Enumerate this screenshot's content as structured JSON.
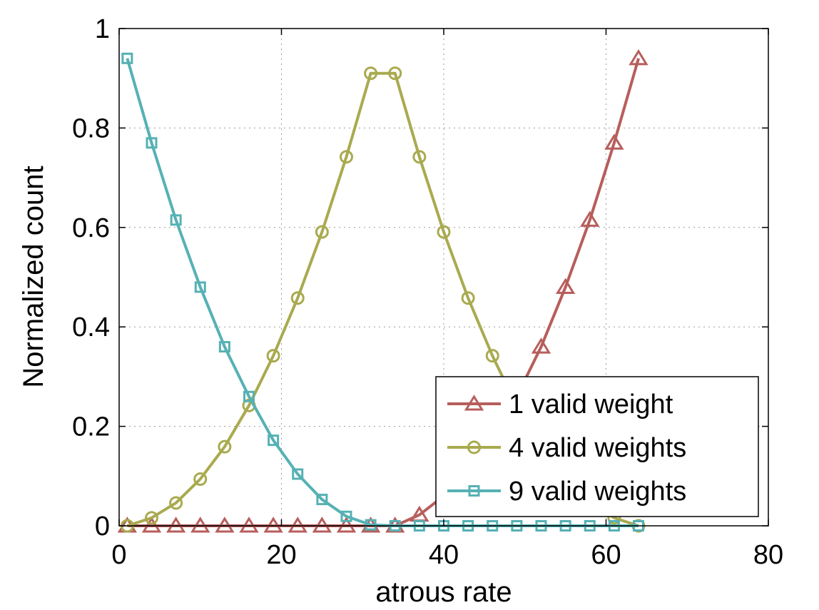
{
  "chart_data": {
    "type": "line",
    "xlabel": "atrous rate",
    "ylabel": "Normalized count",
    "xlim": [
      0,
      80
    ],
    "ylim": [
      0,
      1
    ],
    "xticks": [
      "0",
      "20",
      "40",
      "60",
      "80"
    ],
    "yticks": [
      "0",
      "0.2",
      "0.4",
      "0.6",
      "0.8",
      "1"
    ],
    "grid": true,
    "legend_position": "bottom-right",
    "x": [
      1,
      4,
      7,
      10,
      13,
      16,
      19,
      22,
      25,
      28,
      31,
      34,
      37,
      40,
      43,
      46,
      49,
      52,
      55,
      58,
      61,
      64
    ],
    "series": [
      {
        "name": "1 valid weight",
        "color": "#b75e5c",
        "marker": "triangle",
        "values": [
          0,
          0,
          0,
          0,
          0,
          0,
          0,
          0,
          0,
          0,
          0,
          0,
          0.022,
          0.06,
          0.1,
          0.17,
          0.26,
          0.36,
          0.48,
          0.615,
          0.77,
          0.94
        ]
      },
      {
        "name": "4 valid weights",
        "color": "#a9aa4f",
        "marker": "circle",
        "values": [
          0,
          0.016,
          0.046,
          0.094,
          0.159,
          0.242,
          0.342,
          0.458,
          0.591,
          0.742,
          0.91,
          0.91,
          0.742,
          0.591,
          0.458,
          0.342,
          0.24,
          0.158,
          0.094,
          0.046,
          0.016,
          0
        ]
      },
      {
        "name": "9 valid weights",
        "color": "#56b1b4",
        "marker": "square",
        "values": [
          0.94,
          0.77,
          0.615,
          0.48,
          0.36,
          0.26,
          0.172,
          0.104,
          0.053,
          0.019,
          0.002,
          0,
          0,
          0,
          0,
          0,
          0,
          0,
          0,
          0,
          0,
          0
        ]
      }
    ]
  }
}
